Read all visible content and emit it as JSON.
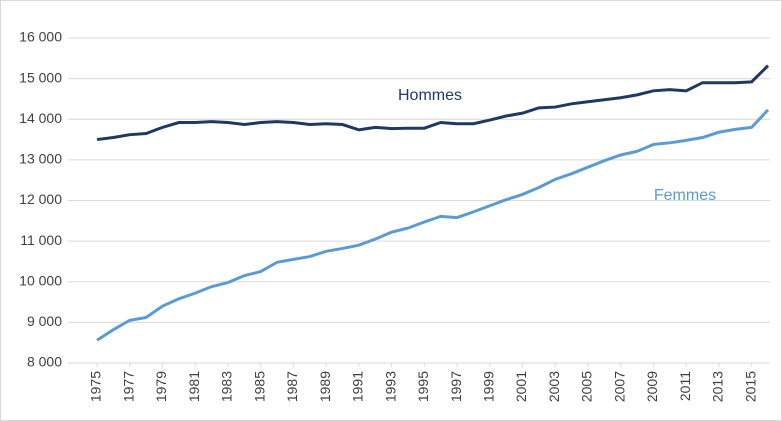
{
  "chart_data": {
    "type": "line",
    "x": [
      1975,
      1976,
      1977,
      1978,
      1979,
      1980,
      1981,
      1982,
      1983,
      1984,
      1985,
      1986,
      1987,
      1988,
      1989,
      1990,
      1991,
      1992,
      1993,
      1994,
      1995,
      1996,
      1997,
      1998,
      1999,
      2000,
      2001,
      2002,
      2003,
      2004,
      2005,
      2006,
      2007,
      2008,
      2009,
      2010,
      2011,
      2012,
      2013,
      2014,
      2015,
      2016
    ],
    "xlim": [
      1975,
      2016
    ],
    "xticks": [
      1975,
      1977,
      1979,
      1981,
      1983,
      1985,
      1987,
      1989,
      1991,
      1993,
      1995,
      1997,
      1999,
      2001,
      2003,
      2005,
      2007,
      2009,
      2011,
      2013,
      2015
    ],
    "ylim": [
      8000,
      16000
    ],
    "yticks": [
      {
        "value": 8000,
        "label": "8 000"
      },
      {
        "value": 9000,
        "label": "9 000"
      },
      {
        "value": 10000,
        "label": "10 000"
      },
      {
        "value": 11000,
        "label": "11 000"
      },
      {
        "value": 12000,
        "label": "12 000"
      },
      {
        "value": 13000,
        "label": "13 000"
      },
      {
        "value": 14000,
        "label": "14 000"
      },
      {
        "value": 15000,
        "label": "15 000"
      },
      {
        "value": 16000,
        "label": "16 000"
      }
    ],
    "grid": true,
    "series": [
      {
        "name": "Hommes",
        "color": "#1f3864",
        "values": [
          13500,
          13550,
          13620,
          13650,
          13800,
          13920,
          13920,
          13940,
          13920,
          13870,
          13920,
          13940,
          13920,
          13870,
          13890,
          13870,
          13740,
          13800,
          13770,
          13780,
          13780,
          13920,
          13890,
          13890,
          13980,
          14080,
          14150,
          14280,
          14300,
          14380,
          14430,
          14480,
          14530,
          14600,
          14700,
          14730,
          14700,
          14900,
          14900,
          14900,
          14920,
          15320
        ]
      },
      {
        "name": "Femmes",
        "color": "#5b9bd5",
        "values": [
          8560,
          8820,
          9050,
          9120,
          9400,
          9580,
          9720,
          9880,
          9980,
          10150,
          10250,
          10480,
          10550,
          10620,
          10750,
          10820,
          10900,
          11050,
          11220,
          11320,
          11470,
          11610,
          11580,
          11720,
          11870,
          12020,
          12150,
          12320,
          12520,
          12660,
          12820,
          12980,
          13120,
          13210,
          13380,
          13420,
          13480,
          13550,
          13680,
          13750,
          13800,
          14230
        ]
      }
    ]
  }
}
